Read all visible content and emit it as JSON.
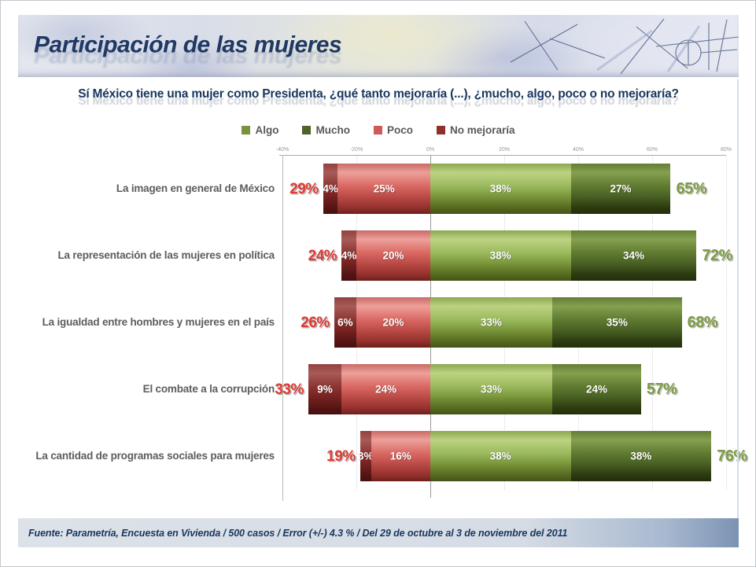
{
  "header": {
    "title": "Participación de las mujeres"
  },
  "question": {
    "text": "Sí México tiene una mujer como Presidenta, ¿qué tanto mejoraría (...), ¿mucho, algo, poco o no mejoraría?"
  },
  "legend": {
    "items": [
      {
        "label": "Algo",
        "color": "#77933C"
      },
      {
        "label": "Mucho",
        "color": "#4F6228"
      },
      {
        "label": "Poco",
        "color": "#CE5B57"
      },
      {
        "label": "No mejoraría",
        "color": "#8F302D"
      }
    ]
  },
  "axis": {
    "tick_labels": [
      "-40%",
      "-20%",
      "0%",
      "20%",
      "40%",
      "60%",
      "80%"
    ],
    "tick_values": [
      -40,
      -20,
      0,
      20,
      40,
      60,
      80
    ]
  },
  "chart_data": {
    "type": "bar",
    "orientation": "horizontal-diverging-stacked",
    "title": "Sí México tiene una mujer como Presidenta, ¿qué tanto mejoraría (...), ¿mucho, algo, poco o no mejoraría?",
    "unit": "%",
    "xlim": [
      -40,
      80
    ],
    "grid": true,
    "legend_position": "top",
    "categories": [
      "La imagen en general de México",
      "La representación de las mujeres en política",
      "La igualdad entre hombres y mujeres en el país",
      "El combate a la corrupción",
      "La cantidad de programas sociales para mujeres"
    ],
    "series": [
      {
        "name": "No mejoraría",
        "key": "nomejor",
        "side": "negative",
        "values": [
          4,
          4,
          6,
          9,
          3
        ]
      },
      {
        "name": "Poco",
        "key": "poco",
        "side": "negative",
        "values": [
          25,
          20,
          20,
          24,
          16
        ]
      },
      {
        "name": "Algo",
        "key": "algo",
        "side": "positive",
        "values": [
          38,
          38,
          33,
          33,
          38
        ]
      },
      {
        "name": "Mucho",
        "key": "mucho",
        "side": "positive",
        "values": [
          27,
          34,
          35,
          24,
          38
        ]
      }
    ],
    "negative_totals": [
      "29%",
      "24%",
      "26%",
      "33%",
      "19%"
    ],
    "positive_totals": [
      "65%",
      "72%",
      "68%",
      "57%",
      "76%"
    ]
  },
  "footer": {
    "source": "Fuente: Parametría, Encuesta en Vivienda / 500 casos / Error (+/-) 4.3 % / Del 29 de octubre al 3 de noviembre del 2011"
  }
}
